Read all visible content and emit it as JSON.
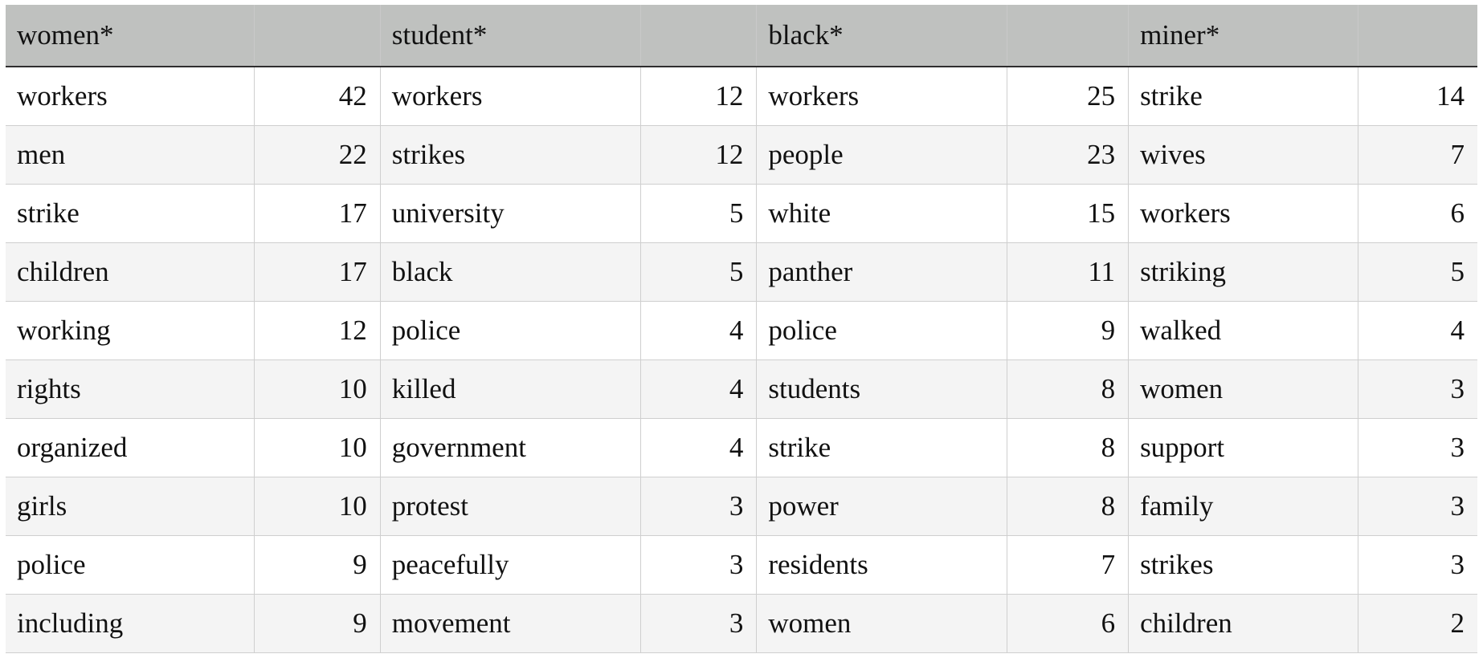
{
  "table": {
    "headers": [
      {
        "word": "women*",
        "count": ""
      },
      {
        "word": "student*",
        "count": ""
      },
      {
        "word": "black*",
        "count": ""
      },
      {
        "word": "miner*",
        "count": ""
      }
    ],
    "rows": [
      [
        [
          "workers",
          "42"
        ],
        [
          "workers",
          "12"
        ],
        [
          "workers",
          "25"
        ],
        [
          "strike",
          "14"
        ]
      ],
      [
        [
          "men",
          "22"
        ],
        [
          "strikes",
          "12"
        ],
        [
          "people",
          "23"
        ],
        [
          "wives",
          "7"
        ]
      ],
      [
        [
          "strike",
          "17"
        ],
        [
          "university",
          "5"
        ],
        [
          "white",
          "15"
        ],
        [
          "workers",
          "6"
        ]
      ],
      [
        [
          "children",
          "17"
        ],
        [
          "black",
          "5"
        ],
        [
          "panther",
          "11"
        ],
        [
          "striking",
          "5"
        ]
      ],
      [
        [
          "working",
          "12"
        ],
        [
          "police",
          "4"
        ],
        [
          "police",
          "9"
        ],
        [
          "walked",
          "4"
        ]
      ],
      [
        [
          "rights",
          "10"
        ],
        [
          "killed",
          "4"
        ],
        [
          "students",
          "8"
        ],
        [
          "women",
          "3"
        ]
      ],
      [
        [
          "organized",
          "10"
        ],
        [
          "government",
          "4"
        ],
        [
          "strike",
          "8"
        ],
        [
          "support",
          "3"
        ]
      ],
      [
        [
          "girls",
          "10"
        ],
        [
          "protest",
          "3"
        ],
        [
          "power",
          "8"
        ],
        [
          "family",
          "3"
        ]
      ],
      [
        [
          "police",
          "9"
        ],
        [
          "peacefully",
          "3"
        ],
        [
          "residents",
          "7"
        ],
        [
          "strikes",
          "3"
        ]
      ],
      [
        [
          "including",
          "9"
        ],
        [
          "movement",
          "3"
        ],
        [
          "women",
          "6"
        ],
        [
          "children",
          "2"
        ]
      ]
    ]
  }
}
